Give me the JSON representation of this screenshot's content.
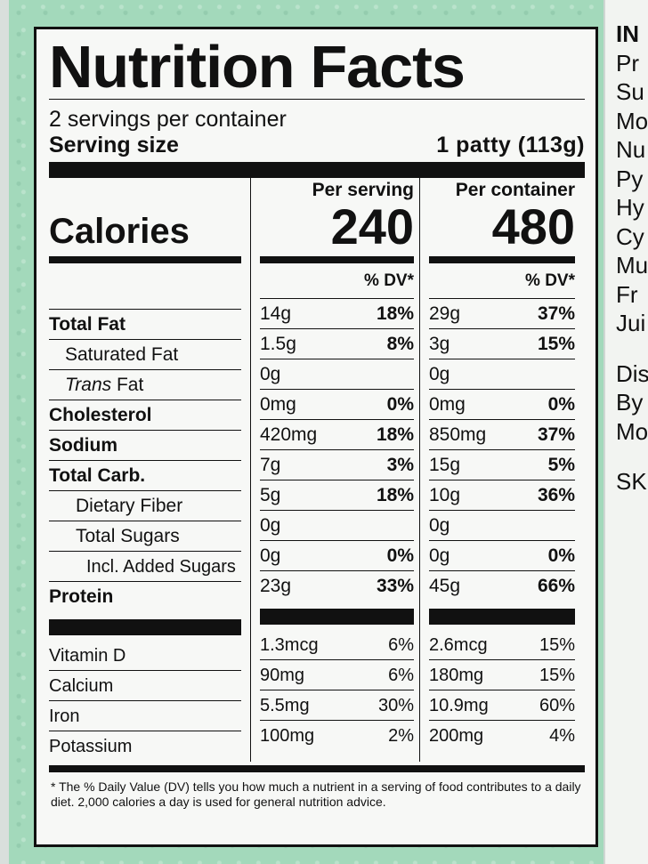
{
  "label": {
    "title": "Nutrition Facts",
    "servings_per_container": "2 servings per container",
    "serving_size_label": "Serving size",
    "serving_size_value": "1 patty (113g)",
    "col_per_serving": "Per serving",
    "col_per_container": "Per container",
    "calories_label": "Calories",
    "calories_per_serving": "240",
    "calories_per_container": "480",
    "dv_header": "% DV*",
    "nutrients": [
      {
        "name": "Total Fat",
        "serving_amt": "14g",
        "serving_dv": "18%",
        "container_amt": "29g",
        "container_dv": "37%"
      },
      {
        "name": "Saturated Fat",
        "serving_amt": "1.5g",
        "serving_dv": "8%",
        "container_amt": "3g",
        "container_dv": "15%"
      },
      {
        "name_trans": "Trans",
        "name_fat": " Fat",
        "serving_amt": "0g",
        "serving_dv": "",
        "container_amt": "0g",
        "container_dv": ""
      },
      {
        "name": "Cholesterol",
        "serving_amt": "0mg",
        "serving_dv": "0%",
        "container_amt": "0mg",
        "container_dv": "0%"
      },
      {
        "name": "Sodium",
        "serving_amt": "420mg",
        "serving_dv": "18%",
        "container_amt": "850mg",
        "container_dv": "37%"
      },
      {
        "name": "Total Carb.",
        "serving_amt": "7g",
        "serving_dv": "3%",
        "container_amt": "15g",
        "container_dv": "5%"
      },
      {
        "name": "Dietary Fiber",
        "serving_amt": "5g",
        "serving_dv": "18%",
        "container_amt": "10g",
        "container_dv": "36%"
      },
      {
        "name": "Total Sugars",
        "serving_amt": "0g",
        "serving_dv": "",
        "container_amt": "0g",
        "container_dv": ""
      },
      {
        "name": "Incl. Added Sugars",
        "serving_amt": "0g",
        "serving_dv": "0%",
        "container_amt": "0g",
        "container_dv": "0%"
      },
      {
        "name": "Protein",
        "serving_amt": "23g",
        "serving_dv": "33%",
        "container_amt": "45g",
        "container_dv": "66%"
      }
    ],
    "vitamins": [
      {
        "name": "Vitamin D",
        "serving_amt": "1.3mcg",
        "serving_dv": "6%",
        "container_amt": "2.6mcg",
        "container_dv": "15%"
      },
      {
        "name": "Calcium",
        "serving_amt": "90mg",
        "serving_dv": "6%",
        "container_amt": "180mg",
        "container_dv": "15%"
      },
      {
        "name": "Iron",
        "serving_amt": "5.5mg",
        "serving_dv": "30%",
        "container_amt": "10.9mg",
        "container_dv": "60%"
      },
      {
        "name": "Potassium",
        "serving_amt": "100mg",
        "serving_dv": "2%",
        "container_amt": "200mg",
        "container_dv": "4%"
      }
    ],
    "footnote": "* The % Daily Value (DV) tells you how much a nutrient in a serving of food contributes to a daily diet. 2,000 calories a day is used for general nutrition advice."
  },
  "ingredients_strip": {
    "lines": [
      "IN",
      "Pr",
      "Su",
      "Mo",
      "Nu",
      "Py",
      "Hy",
      "Cy",
      "Mu",
      "Fr",
      "Jui"
    ],
    "lines2": [
      "Dis",
      "By",
      "Mo"
    ],
    "lines3": [
      "SK"
    ]
  },
  "colors": {
    "background": "#a3d9bb",
    "label": "#f7f8f6",
    "ink": "#111111"
  }
}
